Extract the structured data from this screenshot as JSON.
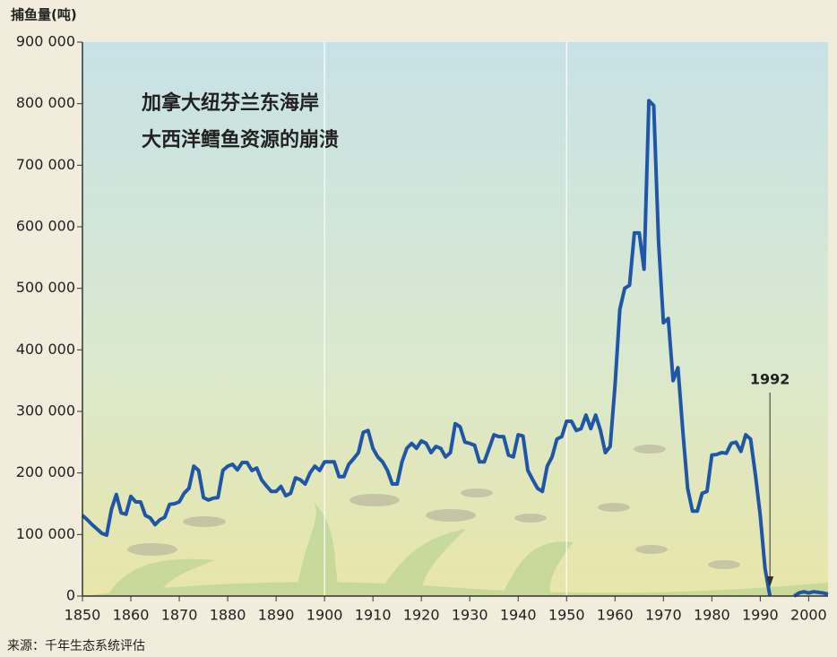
{
  "chart_data": {
    "type": "line",
    "title": [
      "加拿大纽芬兰东海岸",
      "大西洋鳕鱼资源的崩溃"
    ],
    "y_label": "捕鱼量(吨)",
    "source": "来源：千年生态系统评估",
    "xlim": [
      1850,
      2004
    ],
    "ylim": [
      0,
      900000
    ],
    "xticks": [
      1850,
      1860,
      1870,
      1880,
      1890,
      1900,
      1910,
      1920,
      1930,
      1940,
      1950,
      1960,
      1970,
      1980,
      1990,
      2000
    ],
    "yticks": [
      {
        "value": 0,
        "label": "0"
      },
      {
        "value": 100000,
        "label": "100 000"
      },
      {
        "value": 200000,
        "label": "200 000"
      },
      {
        "value": 300000,
        "label": "300 000"
      },
      {
        "value": 400000,
        "label": "400 000"
      },
      {
        "value": 500000,
        "label": "500 000"
      },
      {
        "value": 600000,
        "label": "600 000"
      },
      {
        "value": 700000,
        "label": "700 000"
      },
      {
        "value": 800000,
        "label": "800 000"
      },
      {
        "value": 900000,
        "label": "900 000"
      }
    ],
    "xgrid": [
      1900,
      1950
    ],
    "annotations": [
      {
        "text": "1992",
        "x": 1992
      }
    ],
    "x": [
      1850,
      1851,
      1852,
      1853,
      1854,
      1855,
      1856,
      1857,
      1858,
      1859,
      1860,
      1861,
      1862,
      1863,
      1864,
      1865,
      1866,
      1867,
      1868,
      1869,
      1870,
      1871,
      1872,
      1873,
      1874,
      1875,
      1876,
      1877,
      1878,
      1879,
      1880,
      1881,
      1882,
      1883,
      1884,
      1885,
      1886,
      1887,
      1888,
      1889,
      1890,
      1891,
      1892,
      1893,
      1894,
      1895,
      1896,
      1897,
      1898,
      1899,
      1900,
      1901,
      1902,
      1903,
      1904,
      1905,
      1906,
      1907,
      1908,
      1909,
      1910,
      1911,
      1912,
      1913,
      1914,
      1915,
      1916,
      1917,
      1918,
      1919,
      1920,
      1921,
      1922,
      1923,
      1924,
      1925,
      1926,
      1927,
      1928,
      1929,
      1930,
      1931,
      1932,
      1933,
      1934,
      1935,
      1936,
      1937,
      1938,
      1939,
      1940,
      1941,
      1942,
      1943,
      1944,
      1945,
      1946,
      1947,
      1948,
      1949,
      1950,
      1951,
      1952,
      1953,
      1954,
      1955,
      1956,
      1957,
      1958,
      1959,
      1960,
      1961,
      1962,
      1963,
      1964,
      1965,
      1966,
      1967,
      1968,
      1969,
      1970,
      1971,
      1972,
      1973,
      1974,
      1975,
      1976,
      1977,
      1978,
      1979,
      1980,
      1981,
      1982,
      1983,
      1984,
      1985,
      1986,
      1987,
      1988,
      1989,
      1990,
      1991,
      1992,
      1993,
      1994,
      1995,
      1996,
      1997,
      1998,
      1999,
      2000,
      2001,
      2002,
      2003,
      2004
    ],
    "series": [
      {
        "color": "#1f56a8",
        "values": [
          131000,
          124000,
          116000,
          109000,
          102000,
          99000,
          141000,
          165000,
          135000,
          133000,
          162000,
          153000,
          153000,
          131000,
          127000,
          116000,
          124000,
          128000,
          149000,
          150000,
          153000,
          167000,
          175000,
          211000,
          204000,
          160000,
          156000,
          159000,
          160000,
          204000,
          211000,
          214000,
          205000,
          217000,
          217000,
          204000,
          208000,
          189000,
          179000,
          170000,
          170000,
          178000,
          163000,
          167000,
          192000,
          189000,
          182000,
          200000,
          211000,
          204000,
          218000,
          218000,
          218000,
          194000,
          194000,
          214000,
          223000,
          233000,
          266000,
          269000,
          240000,
          226000,
          218000,
          204000,
          182000,
          182000,
          218000,
          240000,
          248000,
          240000,
          252000,
          248000,
          233000,
          243000,
          240000,
          226000,
          233000,
          280000,
          275000,
          250000,
          248000,
          245000,
          218000,
          218000,
          240000,
          262000,
          259000,
          259000,
          229000,
          226000,
          262000,
          260000,
          204000,
          189000,
          175000,
          170000,
          211000,
          226000,
          255000,
          259000,
          284000,
          284000,
          269000,
          272000,
          294000,
          272000,
          294000,
          269000,
          233000,
          243000,
          342000,
          466000,
          500000,
          505000,
          590000,
          590000,
          531000,
          805000,
          797000,
          575000,
          444000,
          451000,
          350000,
          371000,
          269000,
          175000,
          138000,
          138000,
          167000,
          170000,
          229000,
          230000,
          233000,
          232000,
          248000,
          250000,
          235000,
          262000,
          255000,
          197000,
          131000,
          44000,
          0,
          null,
          null,
          null,
          null,
          0,
          5000,
          7000,
          5000,
          7000,
          6000,
          5000,
          3000
        ]
      }
    ]
  }
}
